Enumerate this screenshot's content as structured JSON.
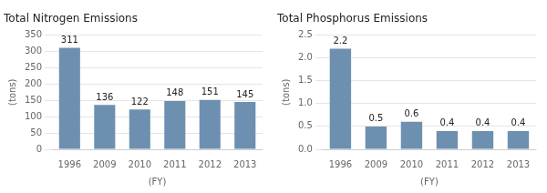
{
  "chart_data": [
    {
      "type": "bar",
      "title": "Total Nitrogen Emissions",
      "ylabel": "(tons)",
      "xlabel": "(FY)",
      "categories": [
        "1996",
        "2009",
        "2010",
        "2011",
        "2012",
        "2013"
      ],
      "values": [
        311,
        136,
        122,
        148,
        151,
        145
      ],
      "color": "#6e90b0",
      "ylim": [
        0,
        350
      ],
      "yticks": [
        0,
        50,
        100,
        150,
        200,
        250,
        300,
        350
      ],
      "grid": true,
      "data_labels": true
    },
    {
      "type": "bar",
      "title": "Total Phosphorus Emissions",
      "ylabel": "(tons)",
      "xlabel": "(FY)",
      "categories": [
        "1996",
        "2009",
        "2010",
        "2011",
        "2012",
        "2013"
      ],
      "values": [
        2.2,
        0.5,
        0.6,
        0.4,
        0.4,
        0.4
      ],
      "color": "#6e90b0",
      "ylim": [
        0,
        2.5
      ],
      "yticks": [
        {
          "value": 0,
          "label": "0.0"
        },
        0.5,
        {
          "value": 1,
          "label": "1.0"
        },
        1.5,
        {
          "value": 2,
          "label": "2.0"
        },
        2.5
      ],
      "grid": true,
      "data_labels": true
    }
  ]
}
